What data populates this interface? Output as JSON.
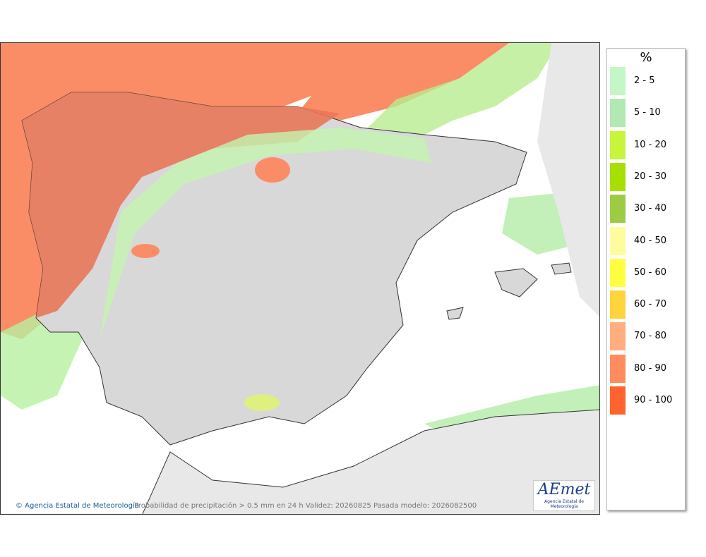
{
  "legend": {
    "title": "%",
    "items": [
      {
        "label": "2 - 5",
        "color": "#c4f7c6"
      },
      {
        "label": "5 - 10",
        "color": "#b2e8b2"
      },
      {
        "label": "10 - 20",
        "color": "#c6f53c"
      },
      {
        "label": "20 - 30",
        "color": "#a6e000"
      },
      {
        "label": "30 - 40",
        "color": "#9ccc44"
      },
      {
        "label": "40 - 50",
        "color": "#fffca0"
      },
      {
        "label": "50 - 60",
        "color": "#ffff40"
      },
      {
        "label": "60 - 70",
        "color": "#ffd43c"
      },
      {
        "label": "70 - 80",
        "color": "#ffae80"
      },
      {
        "label": "80 - 90",
        "color": "#ff8c5e"
      },
      {
        "label": "90 - 100",
        "color": "#ff6430"
      }
    ]
  },
  "footer": {
    "credit": "© Agencia Estatal de Meteorología",
    "caption": "Probabilidad de precipitación > 0.5 mm en 24 h Validez: 20260825 Pasada modelo: 2026082500"
  },
  "logo": {
    "name": "AEmet",
    "subtitle": "Agencia Estatal de Meteorología"
  }
}
